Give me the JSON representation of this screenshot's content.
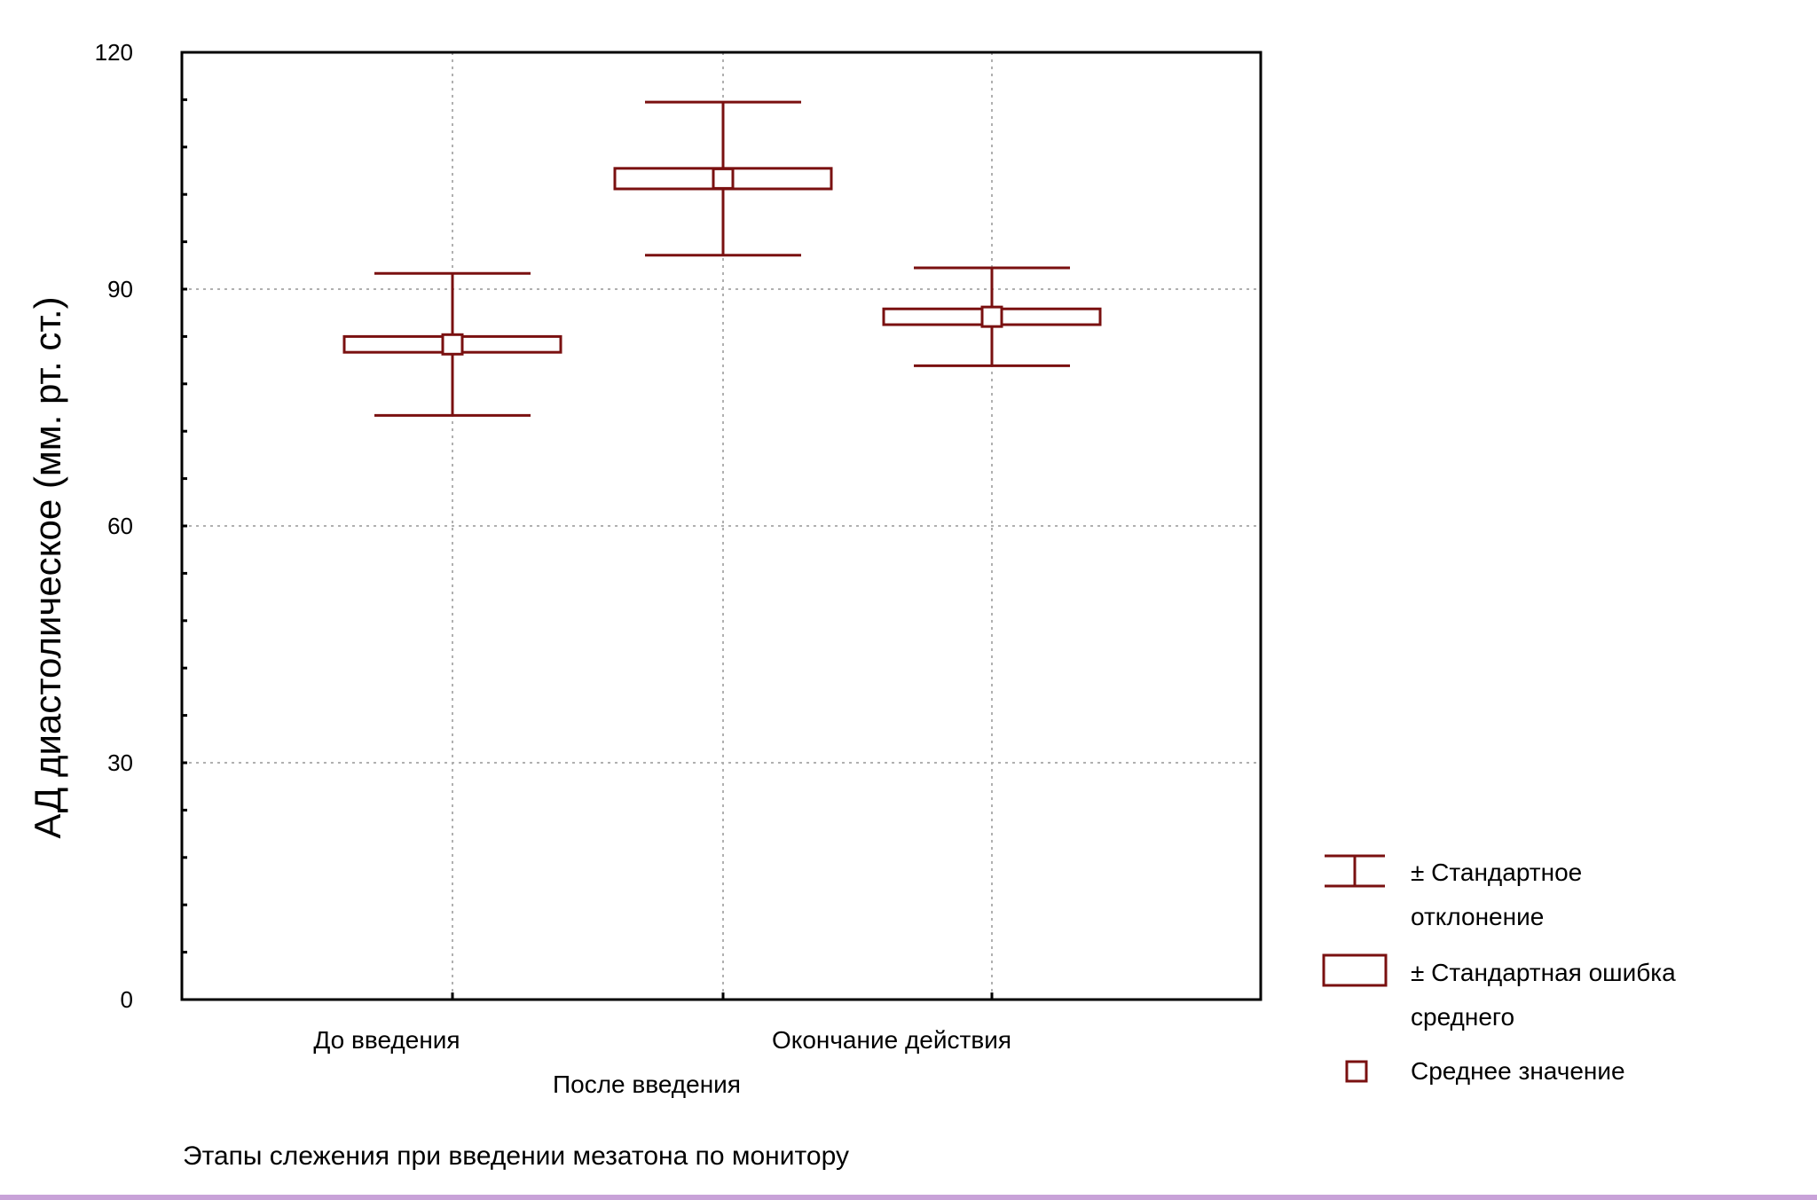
{
  "chart_data": {
    "type": "box-errorbar",
    "ylabel": "АД диастолическое (мм. рт. ст.)",
    "xlabel": "Этапы слежения при введении мезатона по монитору",
    "ylim": [
      0,
      120
    ],
    "yticks": [
      "0",
      "30",
      "60",
      "90",
      "120"
    ],
    "grid": true,
    "categories": [
      "До введения",
      "После введения",
      "Окончание действия"
    ],
    "mean": [
      83,
      104,
      86.5
    ],
    "se": [
      1.0,
      1.3,
      1.0
    ],
    "sd": [
      9.0,
      9.7,
      6.2
    ],
    "legend": {
      "position": "right",
      "items": [
        {
          "line1": "± Стандартное",
          "line2": "отклонение"
        },
        {
          "line1": "± Стандартная ошибка",
          "line2": "среднего"
        },
        {
          "line1": "Среднее значение",
          "line2": ""
        }
      ]
    },
    "colors": {
      "series": "#7a1010",
      "grid": "#b0b0b0",
      "axis": "#000000"
    }
  }
}
